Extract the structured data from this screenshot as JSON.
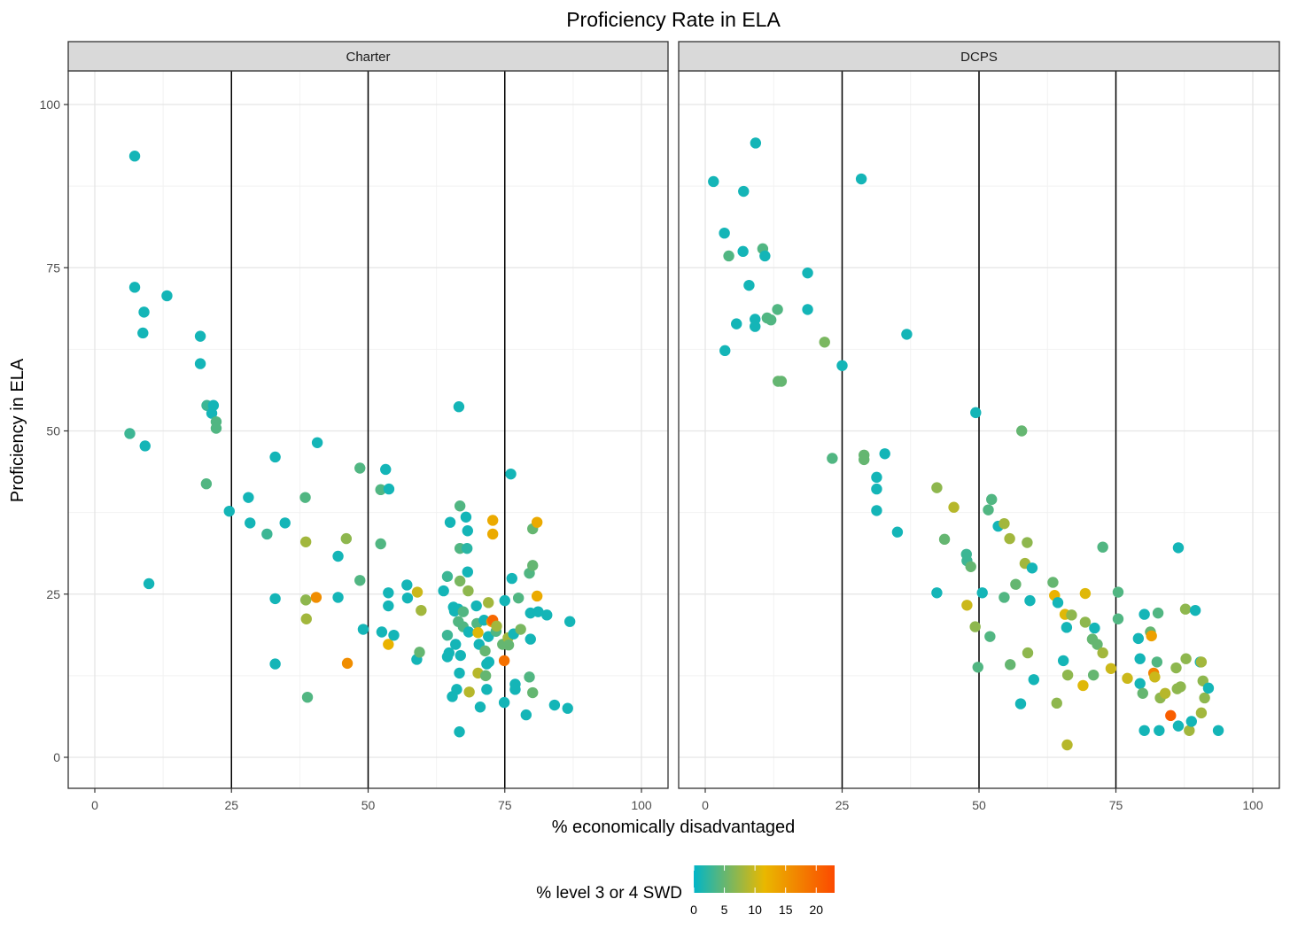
{
  "chart_data": {
    "type": "scatter",
    "title": "Proficiency Rate in ELA",
    "xlabel": "% economically disadvantaged",
    "ylabel": "Proficiency in ELA",
    "xlim": [
      0,
      100
    ],
    "ylim": [
      0,
      100
    ],
    "x_ticks": [
      "0",
      "25",
      "50",
      "75",
      "100"
    ],
    "y_ticks": [
      "0",
      "25",
      "50",
      "75",
      "100"
    ],
    "reference_lines_x": [
      25,
      50,
      75
    ],
    "color_legend": {
      "title": "% level 3 or 4 SWD",
      "ticks": [
        "0",
        "5",
        "10",
        "15",
        "20"
      ],
      "range": [
        0,
        23
      ],
      "colors": [
        "#00b5c8",
        "#e9b800",
        "#fc4a00"
      ],
      "position": "bottom"
    },
    "panels": [
      {
        "name": "Charter",
        "points": [
          [
            7.3,
            92.1,
            1
          ],
          [
            7.3,
            72,
            1
          ],
          [
            9,
            68.2,
            1
          ],
          [
            8.8,
            65,
            1
          ],
          [
            13.2,
            70.7,
            1
          ],
          [
            19.3,
            64.5,
            1
          ],
          [
            19.3,
            60.3,
            1
          ],
          [
            6.4,
            49.6,
            3
          ],
          [
            9.2,
            47.7,
            1
          ],
          [
            20.5,
            53.9,
            3
          ],
          [
            21.7,
            53.9,
            1
          ],
          [
            21.4,
            52.7,
            1
          ],
          [
            22.2,
            51.4,
            4
          ],
          [
            22.2,
            50.4,
            4
          ],
          [
            20.4,
            41.9,
            4
          ],
          [
            9.9,
            26.6,
            1
          ],
          [
            24.6,
            37.7,
            1
          ],
          [
            28.1,
            39.8,
            1
          ],
          [
            28.4,
            35.9,
            1
          ],
          [
            31.5,
            34.2,
            3
          ],
          [
            33,
            46,
            1
          ],
          [
            34.8,
            35.9,
            1
          ],
          [
            33,
            24.3,
            1
          ],
          [
            33,
            14.3,
            1
          ],
          [
            38.5,
            39.8,
            4
          ],
          [
            38.6,
            33,
            8
          ],
          [
            38.6,
            24.1,
            7
          ],
          [
            38.7,
            21.2,
            8
          ],
          [
            38.9,
            9.2,
            4
          ],
          [
            40.5,
            24.5,
            16
          ],
          [
            40.7,
            48.2,
            1
          ],
          [
            44.5,
            30.8,
            1
          ],
          [
            44.5,
            24.5,
            1
          ],
          [
            46,
            33.5,
            7
          ],
          [
            46.2,
            14.4,
            16
          ],
          [
            48.5,
            44.3,
            4
          ],
          [
            48.5,
            27.1,
            4
          ],
          [
            49.1,
            19.6,
            1
          ],
          [
            52.3,
            41,
            4
          ],
          [
            52.3,
            32.7,
            4
          ],
          [
            52.5,
            19.2,
            1
          ],
          [
            53.2,
            44.1,
            1
          ],
          [
            53.8,
            41.1,
            1
          ],
          [
            53.7,
            25.2,
            1
          ],
          [
            53.7,
            23.2,
            1
          ],
          [
            53.7,
            17.3,
            12
          ],
          [
            54.7,
            18.7,
            1
          ],
          [
            57.1,
            26.4,
            1
          ],
          [
            57.2,
            24.4,
            1
          ],
          [
            58.9,
            15,
            1
          ],
          [
            59,
            25.3,
            10
          ],
          [
            59.7,
            22.5,
            8
          ],
          [
            59.4,
            16.1,
            5
          ],
          [
            63.8,
            25.5,
            1
          ],
          [
            64.5,
            27.7,
            3
          ],
          [
            64.5,
            18.7,
            3
          ],
          [
            64.5,
            15.4,
            1
          ],
          [
            64.8,
            16,
            1
          ],
          [
            65,
            36,
            1
          ],
          [
            65.4,
            9.3,
            1
          ],
          [
            65.6,
            23,
            1
          ],
          [
            65.8,
            22.4,
            1
          ],
          [
            66,
            17.3,
            1
          ],
          [
            66.2,
            10.4,
            1
          ],
          [
            66.6,
            53.7,
            1
          ],
          [
            66.8,
            38.5,
            4
          ],
          [
            66.8,
            32,
            4
          ],
          [
            66.8,
            27,
            6
          ],
          [
            66.5,
            22.7,
            1
          ],
          [
            66.5,
            20.8,
            4
          ],
          [
            66.9,
            15.6,
            1
          ],
          [
            66.7,
            12.9,
            1
          ],
          [
            66.7,
            3.9,
            1
          ],
          [
            67.4,
            22.3,
            4
          ],
          [
            67.4,
            20,
            4
          ],
          [
            67.9,
            36.8,
            1
          ],
          [
            68.1,
            32,
            2
          ],
          [
            68.2,
            34.7,
            1
          ],
          [
            68.2,
            28.4,
            1
          ],
          [
            68.3,
            25.5,
            7
          ],
          [
            68.4,
            19.2,
            1
          ],
          [
            68.5,
            10,
            9
          ],
          [
            69.8,
            23.2,
            1
          ],
          [
            69.9,
            20.5,
            4
          ],
          [
            70.1,
            19.1,
            11
          ],
          [
            70.1,
            12.9,
            9
          ],
          [
            70.3,
            17.3,
            1
          ],
          [
            70.5,
            7.7,
            1
          ],
          [
            71.2,
            21,
            1
          ],
          [
            71.4,
            16.3,
            5
          ],
          [
            71.5,
            12.5,
            5
          ],
          [
            71.7,
            14.3,
            1
          ],
          [
            71.7,
            10.4,
            1
          ],
          [
            72,
            18.5,
            1
          ],
          [
            72,
            23.7,
            8
          ],
          [
            72.1,
            14.6,
            1
          ],
          [
            72.6,
            20.8,
            15
          ],
          [
            72.8,
            36.3,
            13
          ],
          [
            72.8,
            34.2,
            13
          ],
          [
            72.8,
            21,
            20
          ],
          [
            73.4,
            19.3,
            4
          ],
          [
            73.5,
            20.1,
            8
          ],
          [
            74.6,
            17.3,
            5
          ],
          [
            74.9,
            14.8,
            19
          ],
          [
            74.9,
            8.4,
            1
          ],
          [
            75,
            24,
            1
          ],
          [
            75.6,
            18.3,
            8
          ],
          [
            75.7,
            17.2,
            5
          ],
          [
            76.1,
            43.4,
            1
          ],
          [
            76.3,
            27.4,
            1
          ],
          [
            76.6,
            18.9,
            1
          ],
          [
            76.9,
            11.2,
            1
          ],
          [
            76.9,
            10.4,
            1
          ],
          [
            77.5,
            24.4,
            4
          ],
          [
            77.9,
            19.6,
            6
          ],
          [
            78.9,
            6.5,
            1
          ],
          [
            79.5,
            12.3,
            4
          ],
          [
            79.5,
            28.2,
            4
          ],
          [
            79.7,
            18.1,
            1
          ],
          [
            79.7,
            22.1,
            1
          ],
          [
            80.1,
            35,
            5
          ],
          [
            80.1,
            29.4,
            5
          ],
          [
            80.1,
            9.9,
            5
          ],
          [
            80.9,
            36,
            13
          ],
          [
            80.9,
            24.7,
            13
          ],
          [
            81.1,
            22.3,
            1
          ],
          [
            82.7,
            21.8,
            1
          ],
          [
            84.1,
            8,
            1
          ],
          [
            86.5,
            7.5,
            1
          ],
          [
            86.9,
            20.8,
            1
          ]
        ]
      },
      {
        "name": "DCPS",
        "points": [
          [
            1.5,
            88.2,
            1
          ],
          [
            3.5,
            80.3,
            1
          ],
          [
            4.3,
            76.8,
            4
          ],
          [
            7,
            86.7,
            1
          ],
          [
            6.9,
            77.5,
            1
          ],
          [
            3.6,
            62.3,
            1
          ],
          [
            5.7,
            66.4,
            1
          ],
          [
            8,
            72.3,
            1
          ],
          [
            9.2,
            94.1,
            1
          ],
          [
            9.1,
            67.1,
            1
          ],
          [
            9.1,
            66,
            1
          ],
          [
            10.5,
            77.9,
            4
          ],
          [
            10.9,
            76.8,
            1
          ],
          [
            11.3,
            67.3,
            4
          ],
          [
            12,
            67,
            4
          ],
          [
            13.2,
            68.6,
            4
          ],
          [
            13.3,
            57.6,
            5
          ],
          [
            13.9,
            57.6,
            5
          ],
          [
            18.7,
            74.2,
            1
          ],
          [
            18.7,
            68.6,
            1
          ],
          [
            21.8,
            63.6,
            6
          ],
          [
            23.2,
            45.8,
            4
          ],
          [
            25,
            60,
            1
          ],
          [
            28.5,
            88.6,
            1
          ],
          [
            29,
            46.3,
            5
          ],
          [
            29,
            45.6,
            5
          ],
          [
            31.3,
            42.9,
            1
          ],
          [
            31.3,
            41.1,
            1
          ],
          [
            31.3,
            37.8,
            1
          ],
          [
            32.8,
            46.5,
            1
          ],
          [
            35.1,
            34.5,
            1
          ],
          [
            36.8,
            64.8,
            1
          ],
          [
            42.3,
            41.3,
            7
          ],
          [
            42.3,
            25.2,
            1
          ],
          [
            43.7,
            33.4,
            5
          ],
          [
            45.4,
            38.3,
            9
          ],
          [
            47.7,
            31.1,
            3
          ],
          [
            47.8,
            30.1,
            3
          ],
          [
            48.5,
            29.2,
            5
          ],
          [
            47.8,
            23.3,
            10
          ],
          [
            49.4,
            52.8,
            1
          ],
          [
            49.3,
            20,
            7
          ],
          [
            49.8,
            13.8,
            4
          ],
          [
            50.6,
            25.2,
            1
          ],
          [
            51.7,
            37.9,
            4
          ],
          [
            52.3,
            39.5,
            4
          ],
          [
            52,
            18.5,
            4
          ],
          [
            53.5,
            35.4,
            1
          ],
          [
            54.6,
            35.8,
            8
          ],
          [
            54.6,
            24.5,
            4
          ],
          [
            55.6,
            33.5,
            8
          ],
          [
            55.7,
            14.2,
            5
          ],
          [
            56.7,
            26.5,
            5
          ],
          [
            57.8,
            50,
            5
          ],
          [
            57.6,
            8.2,
            1
          ],
          [
            58.4,
            29.7,
            8
          ],
          [
            58.8,
            32.9,
            7
          ],
          [
            58.9,
            16,
            7
          ],
          [
            59.3,
            24,
            1
          ],
          [
            59.7,
            29,
            1
          ],
          [
            60,
            11.9,
            1
          ],
          [
            63.5,
            26.8,
            5
          ],
          [
            63.8,
            24.8,
            12
          ],
          [
            64.4,
            23.7,
            1
          ],
          [
            64.2,
            8.3,
            7
          ],
          [
            65.4,
            14.8,
            1
          ],
          [
            65.7,
            21.9,
            11
          ],
          [
            66,
            19.9,
            1
          ],
          [
            66.2,
            12.6,
            7
          ],
          [
            66.1,
            1.9,
            9
          ],
          [
            66.9,
            21.8,
            7
          ],
          [
            69,
            11,
            11
          ],
          [
            69.4,
            25.1,
            11
          ],
          [
            69.4,
            20.7,
            7
          ],
          [
            70.9,
            12.6,
            5
          ],
          [
            70.7,
            18.1,
            5
          ],
          [
            71.1,
            19.8,
            1
          ],
          [
            71.6,
            17.3,
            5
          ],
          [
            72.6,
            16,
            8
          ],
          [
            72.6,
            32.2,
            4
          ],
          [
            74.1,
            13.6,
            10
          ],
          [
            75.4,
            25.3,
            4
          ],
          [
            75.4,
            21.2,
            4
          ],
          [
            77.1,
            12.1,
            10
          ],
          [
            79.1,
            18.2,
            1
          ],
          [
            79.4,
            15.1,
            1
          ],
          [
            79.4,
            11.3,
            1
          ],
          [
            79.9,
            9.8,
            5
          ],
          [
            80.2,
            21.9,
            1
          ],
          [
            80.2,
            4.1,
            1
          ],
          [
            81.3,
            19.2,
            5
          ],
          [
            81.5,
            18.6,
            14
          ],
          [
            81.9,
            12.9,
            17
          ],
          [
            82.1,
            12.3,
            10
          ],
          [
            82.5,
            14.6,
            4
          ],
          [
            82.7,
            22.1,
            4
          ],
          [
            82.9,
            4.1,
            1
          ],
          [
            83.1,
            9.1,
            7
          ],
          [
            84,
            9.8,
            9
          ],
          [
            85,
            6.4,
            21
          ],
          [
            86,
            13.7,
            7
          ],
          [
            86.2,
            10.5,
            7
          ],
          [
            86.4,
            32.1,
            1
          ],
          [
            86.4,
            4.8,
            1
          ],
          [
            86.8,
            10.8,
            7
          ],
          [
            87.7,
            22.7,
            7
          ],
          [
            87.8,
            15.1,
            7
          ],
          [
            88.4,
            4.1,
            8
          ],
          [
            88.8,
            5.5,
            1
          ],
          [
            89.5,
            22.5,
            1
          ],
          [
            90.4,
            14.6,
            1
          ],
          [
            90.6,
            14.6,
            8
          ],
          [
            90.6,
            6.8,
            8
          ],
          [
            90.9,
            11.7,
            7
          ],
          [
            91.2,
            9.1,
            7
          ],
          [
            91.9,
            10.6,
            1
          ],
          [
            93.7,
            4.1,
            1
          ]
        ]
      }
    ]
  }
}
